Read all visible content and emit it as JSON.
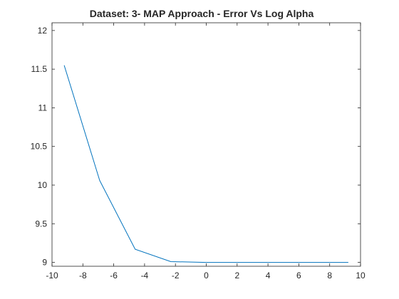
{
  "chart_data": {
    "type": "line",
    "title": "Dataset: 3- MAP Approach - Error Vs Log Alpha",
    "xlabel": "",
    "ylabel": "",
    "xlim": [
      -10,
      10
    ],
    "ylim": [
      8.95,
      12.1
    ],
    "xticks": [
      "-10",
      "-8",
      "-6",
      "-4",
      "-2",
      "0",
      "2",
      "4",
      "6",
      "8",
      "10"
    ],
    "yticks": [
      "9",
      "9.5",
      "10",
      "10.5",
      "11",
      "11.5",
      "12"
    ],
    "grid": false,
    "box": true,
    "series": [
      {
        "color": "#0072bd",
        "x": [
          -9.21,
          -6.91,
          -4.61,
          -2.3,
          0,
          2.3,
          4.61,
          6.91,
          9.21
        ],
        "y": [
          11.55,
          10.06,
          9.17,
          9.01,
          9.0,
          9.0,
          9.0,
          9.0,
          9.0
        ]
      }
    ]
  }
}
